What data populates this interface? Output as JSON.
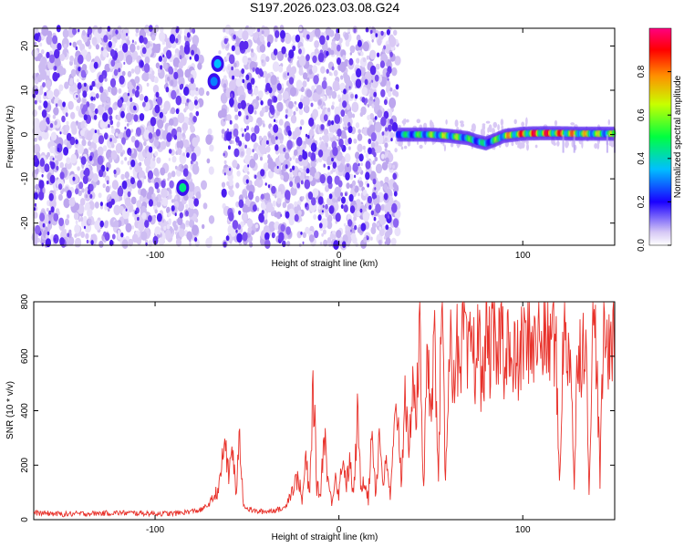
{
  "title": "S197.2026.023.03.08.G24",
  "chart_data": [
    {
      "type": "heatmap",
      "xlabel": "Height of straight line (km)",
      "ylabel": "Frequency (Hz)",
      "xlim": [
        -166,
        150
      ],
      "ylim": [
        -25,
        24
      ],
      "xticks": [
        -100,
        0,
        100
      ],
      "yticks": [
        -20,
        -10,
        0,
        10,
        20
      ],
      "grid": false,
      "noise_region": [
        -166,
        32
      ],
      "gap_region": [
        -77,
        -63
      ],
      "signal_line": {
        "x": [
          32,
          40,
          50,
          60,
          70,
          75,
          80,
          85,
          90,
          100,
          110,
          120,
          130,
          140,
          150
        ],
        "freq": [
          0,
          0,
          0,
          -0.3,
          -0.8,
          -1.5,
          -2.0,
          -1.2,
          -0.3,
          0.2,
          0.3,
          0.3,
          0.2,
          0.2,
          0.2
        ],
        "amplitude": [
          0.4,
          0.45,
          0.55,
          0.6,
          0.5,
          0.45,
          0.4,
          0.5,
          0.65,
          0.8,
          0.85,
          0.8,
          0.7,
          0.6,
          0.55
        ]
      },
      "spots": [
        {
          "x": -66,
          "freq": 16,
          "amplitude": 0.35
        },
        {
          "x": -68,
          "freq": 12,
          "amplitude": 0.3
        },
        {
          "x": -85,
          "freq": -12,
          "amplitude": 0.45
        }
      ],
      "colorbar": {
        "label": "Normalized spectral amplitude",
        "range": [
          0,
          1
        ],
        "ticks": [
          "0.0",
          "0.2",
          "0.4",
          "0.6",
          "0.8"
        ]
      }
    },
    {
      "type": "line",
      "xlabel": "Height of straight line (km)",
      "ylabel": "SNR (10 * v/v)",
      "xlim": [
        -166,
        150
      ],
      "ylim": [
        0,
        800
      ],
      "xticks": [
        -100,
        0,
        100
      ],
      "yticks": [
        0,
        200,
        400,
        600,
        800
      ],
      "grid": false,
      "series": [
        {
          "name": "SNR",
          "color": "#e8312a",
          "x": [
            -166,
            -150,
            -120,
            -90,
            -75,
            -70,
            -65,
            -62,
            -60,
            -58,
            -56,
            -54,
            -52,
            -50,
            -45,
            -40,
            -30,
            -22,
            -20,
            -18,
            -16,
            -14,
            -12,
            -10,
            -8,
            -6,
            -4,
            -2,
            0,
            2,
            4,
            6,
            8,
            10,
            12,
            14,
            16,
            18,
            20,
            22,
            24,
            26,
            28,
            30,
            32,
            34,
            36,
            38,
            40,
            42,
            44,
            46,
            48,
            50,
            52,
            54,
            56,
            58,
            60,
            62,
            64,
            66,
            68,
            70,
            72,
            74,
            76,
            78,
            80,
            82,
            84,
            86,
            88,
            90,
            92,
            94,
            96,
            98,
            100,
            102,
            104,
            106,
            108,
            110,
            112,
            114,
            116,
            118,
            120,
            122,
            124,
            126,
            128,
            130,
            132,
            134,
            136,
            138,
            140,
            142,
            144,
            146,
            148,
            150
          ],
          "values": [
            25,
            20,
            25,
            22,
            35,
            60,
            120,
            300,
            150,
            280,
            90,
            300,
            60,
            40,
            30,
            30,
            40,
            160,
            60,
            230,
            70,
            520,
            120,
            90,
            340,
            150,
            60,
            170,
            90,
            240,
            130,
            210,
            80,
            380,
            120,
            160,
            70,
            350,
            90,
            320,
            140,
            200,
            80,
            300,
            420,
            120,
            530,
            180,
            560,
            360,
            700,
            120,
            560,
            460,
            660,
            140,
            790,
            120,
            720,
            520,
            660,
            450,
            780,
            520,
            700,
            560,
            680,
            470,
            720,
            600,
            680,
            540,
            740,
            600,
            700,
            480,
            620,
            550,
            660,
            620,
            720,
            600,
            700,
            620,
            700,
            620,
            700,
            640,
            120,
            690,
            600,
            660,
            110,
            680,
            600,
            720,
            110,
            700,
            650,
            140,
            730,
            600,
            720,
            640
          ]
        }
      ]
    }
  ]
}
